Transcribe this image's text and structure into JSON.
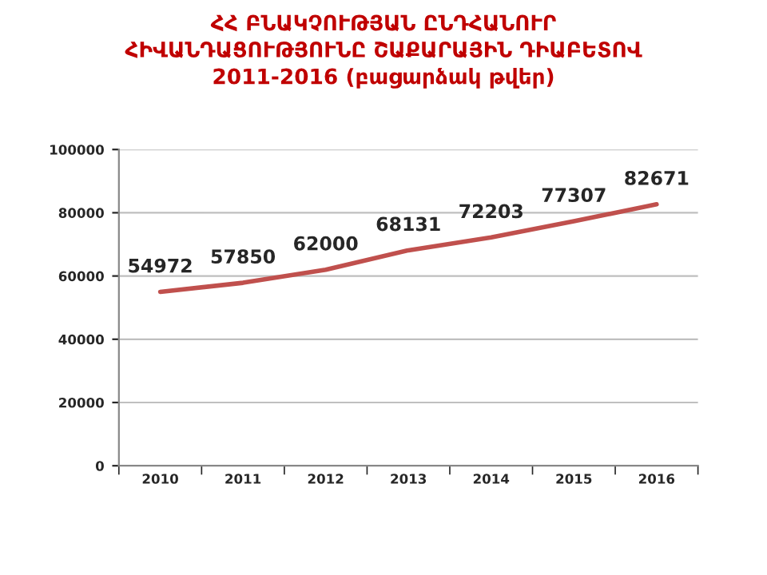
{
  "chart_data": {
    "type": "line",
    "title": "ՀՀ ԲՆԱԿՉՈՒԹՅԱՆ ԸՆԴՀԱՆՈՒՐ\nՀԻՎԱՆԴԱՑՈՒԹՅՈՒՆԸ ՇԱՔԱՐԱՅԻՆ ԴԻԱԲԵՏՈՎ\n2011-2016 (բացարձակ թվեր)",
    "categories": [
      "2010",
      "2011",
      "2012",
      "2013",
      "2014",
      "2015",
      "2016"
    ],
    "series": [
      {
        "color": "#c0504d",
        "values": [
          54972,
          57850,
          62000,
          68131,
          72203,
          77307,
          82671
        ]
      }
    ],
    "ylim": [
      0,
      100000
    ],
    "yticks": [
      0,
      20000,
      40000,
      60000,
      80000,
      100000
    ],
    "grid": "y",
    "data_labels": true,
    "marker": "none",
    "line_style": "solid"
  }
}
